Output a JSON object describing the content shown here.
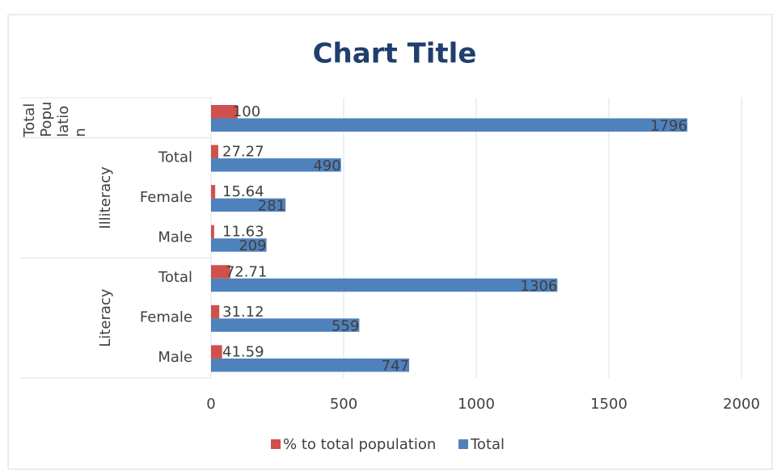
{
  "chart_data": {
    "type": "bar",
    "orientation": "horizontal",
    "title": "Chart Title",
    "categories": [
      null,
      "Total",
      "Female",
      "Male",
      "Total",
      "Female",
      "Male"
    ],
    "groups": [
      {
        "name": "Total Population",
        "count": 1
      },
      {
        "name": "Illiteracy",
        "count": 3
      },
      {
        "name": "Literacy",
        "count": 3
      }
    ],
    "series": [
      {
        "name": "% to total population",
        "color": "#d0504d",
        "values": [
          100,
          27.27,
          15.64,
          11.63,
          72.71,
          31.12,
          41.59
        ]
      },
      {
        "name": "Total",
        "color": "#4f81bd",
        "values": [
          1796,
          490,
          281,
          209,
          1306,
          559,
          747
        ]
      }
    ],
    "xlim": [
      0,
      2000
    ],
    "xticks": [
      0,
      500,
      1000,
      1500,
      2000
    ],
    "grid": true,
    "legend": "bottom"
  }
}
